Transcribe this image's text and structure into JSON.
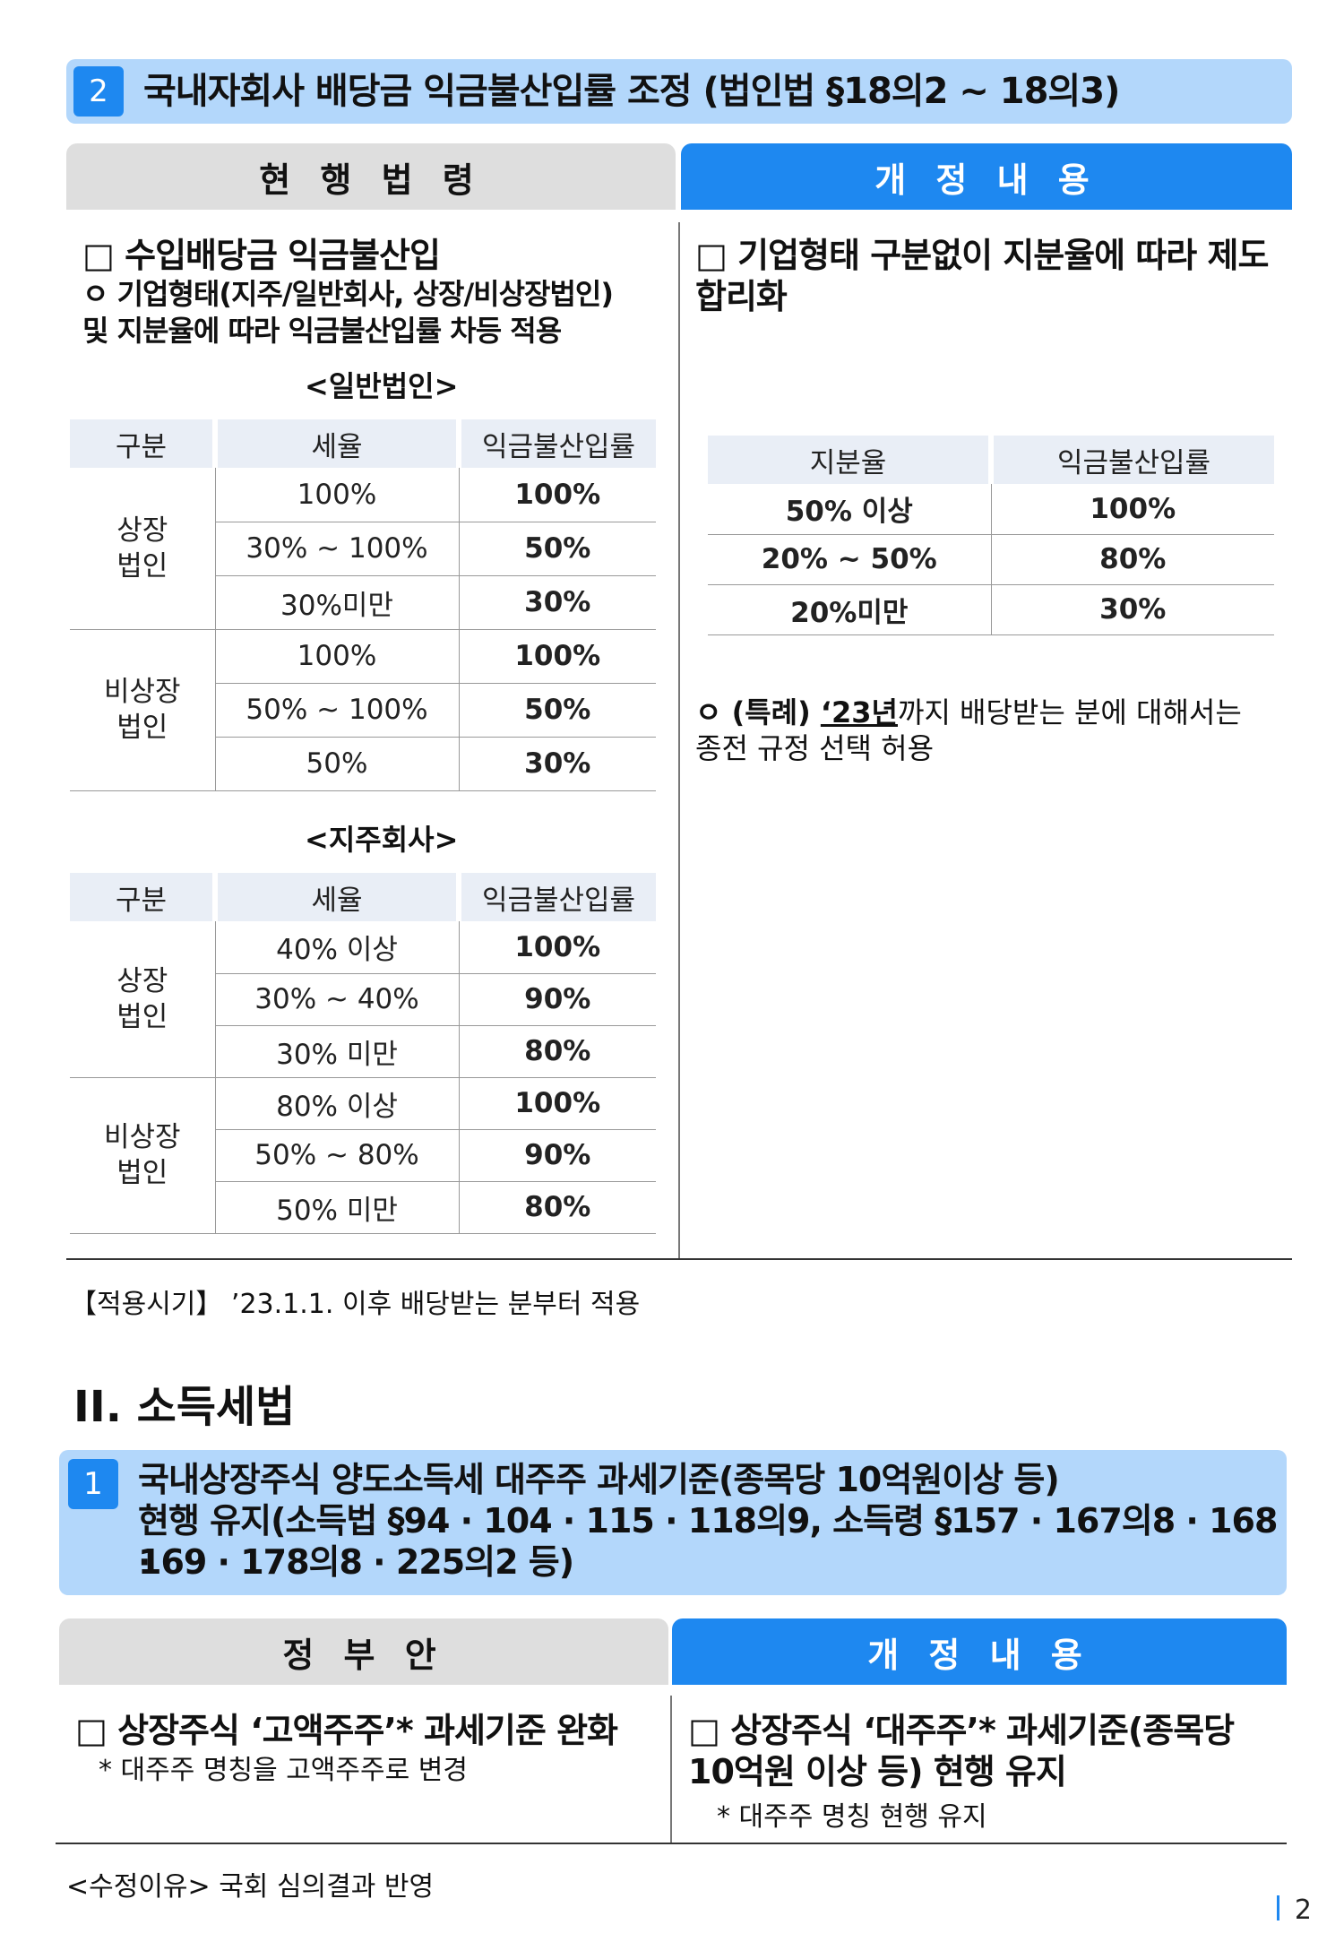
{
  "section2": {
    "number": "2",
    "title": "국내자회사 배당금 익금불산입률 조정 (법인법 §18의2 ~ 18의3)"
  },
  "headers": {
    "current_law": "현 행 법 령",
    "amendment": "개 정 내 용"
  },
  "left": {
    "heading": "□ 수입배당금 익금불산입",
    "bullet_line1": "ㅇ 기업형태(지주/일반회사, 상장/비상장법인)",
    "bullet_line2": "및 지분율에 따라 익금불산입률 차등 적용",
    "table1_caption": "<일반법인>",
    "table2_caption": "<지주회사>",
    "columns": [
      "구분",
      "세율",
      "익금불산입률"
    ],
    "group_listed": [
      "상장",
      "법인"
    ],
    "group_unlisted": [
      "비상장",
      "법인"
    ],
    "general": {
      "listed": [
        [
          "100%",
          "100%"
        ],
        [
          "30% ~ 100%",
          "50%"
        ],
        [
          "30%미만",
          "30%"
        ]
      ],
      "unlisted": [
        [
          "100%",
          "100%"
        ],
        [
          "50% ~ 100%",
          "50%"
        ],
        [
          "50%",
          "30%"
        ]
      ]
    },
    "holding": {
      "listed": [
        [
          "40% 이상",
          "100%"
        ],
        [
          "30% ~ 40%",
          "90%"
        ],
        [
          "30% 미만",
          "80%"
        ]
      ],
      "unlisted": [
        [
          "80% 이상",
          "100%"
        ],
        [
          "50% ~ 80%",
          "90%"
        ],
        [
          "50% 미만",
          "80%"
        ]
      ]
    }
  },
  "right": {
    "heading_line1": "□ 기업형태 구분없이 지분율에 따라 제도",
    "heading_line2": "합리화",
    "columns": [
      "지분율",
      "익금불산입률"
    ],
    "rows": [
      [
        "50% 이상",
        "100%"
      ],
      [
        "20% ~ 50%",
        "80%"
      ],
      [
        "20%미만",
        "30%"
      ]
    ],
    "special_prefix": "ㅇ (특례) ",
    "special_year": "‘23년",
    "special_rest": "까지 배당받는 분에 대해서는",
    "special_line2": "종전 규정 선택 허용"
  },
  "effective": "【적용시기】 ’23.1.1. 이후 배당받는 분부터 적용",
  "chapter": "II. 소득세법",
  "section1": {
    "number": "1",
    "title_line1": "국내상장주식 양도소득세 대주주 과세기준(종목당 10억원이상 등)",
    "title_line2": "현행 유지(소득법 §94 · 104 · 115 · 118의9, 소득령 §157 · 167의8 · 168 ·",
    "title_line3": "169 · 178의8 · 225의2 등)"
  },
  "headers2": {
    "gov": "정 부 안",
    "amendment": "개 정 내 용"
  },
  "gov": {
    "heading": "□ 상장주식 ‘고액주주’* 과세기준 완화",
    "note": "* 대주주 명칭을 고액주주로 변경"
  },
  "amend": {
    "heading_line1": "□ 상장주식 ‘대주주’* 과세기준(종목당",
    "heading_line2": "10억원 이상 등) 현행 유지",
    "note": "* 대주주 명칭 현행 유지"
  },
  "reason": "<수정이유> 국회 심의결과 반영",
  "page_number": "2"
}
